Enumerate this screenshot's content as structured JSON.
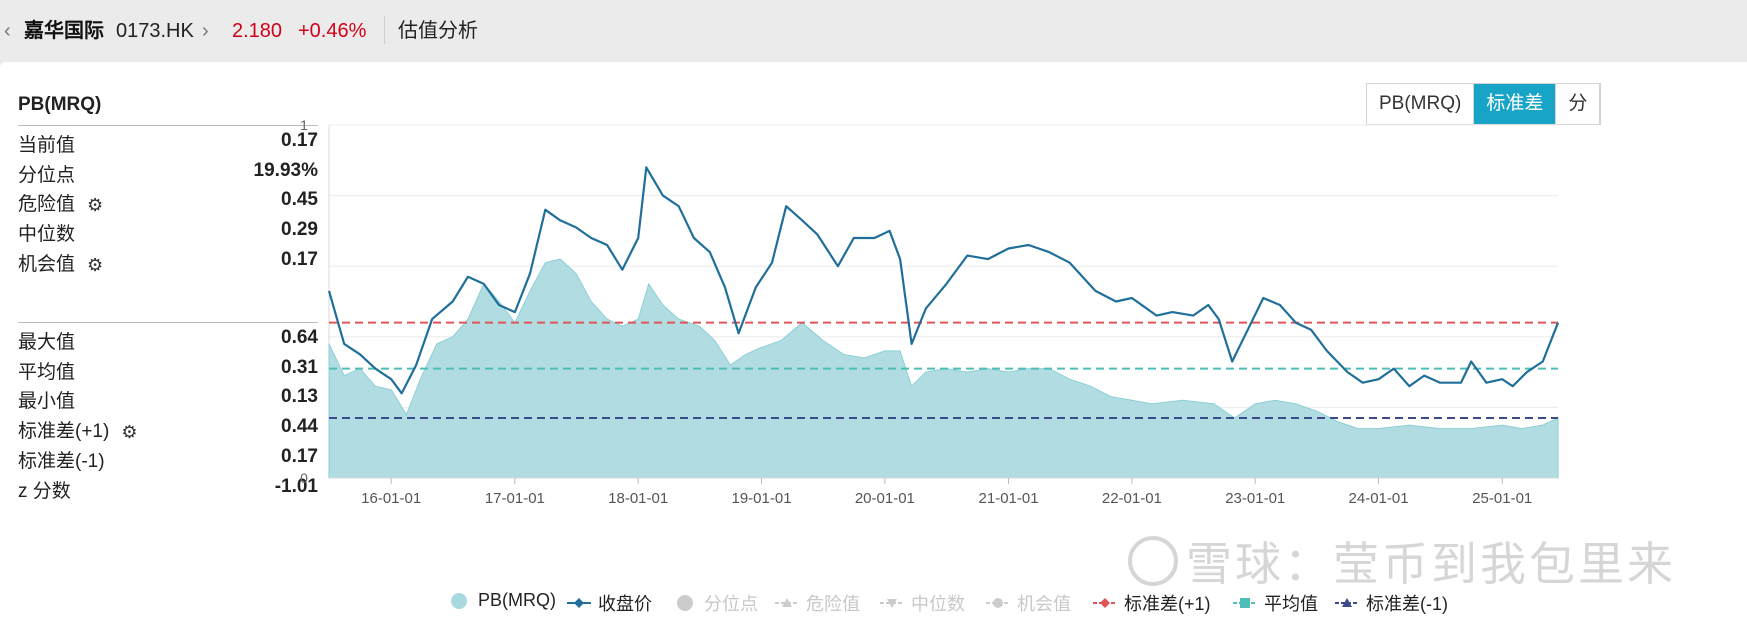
{
  "header": {
    "back_icon": "chevron-left-icon",
    "stock_name": "嘉华国际",
    "stock_code": "0173.HK",
    "forward_icon": "chevron-right-icon",
    "price": "2.180",
    "change": "+0.46%",
    "page_title": "估值分析",
    "colors": {
      "price": "#d0021b"
    }
  },
  "sidebar": {
    "title": "PB(MRQ)",
    "group1": [
      {
        "label": "当前值",
        "value": "0.17",
        "gear": false
      },
      {
        "label": "分位点",
        "value": "19.93%",
        "gear": false
      },
      {
        "label": "危险值",
        "value": "0.45",
        "gear": true
      },
      {
        "label": "中位数",
        "value": "0.29",
        "gear": false
      },
      {
        "label": "机会值",
        "value": "0.17",
        "gear": true
      }
    ],
    "group2": [
      {
        "label": "最大值",
        "value": "0.64",
        "gear": false
      },
      {
        "label": "平均值",
        "value": "0.31",
        "gear": false
      },
      {
        "label": "最小值",
        "value": "0.13",
        "gear": false
      },
      {
        "label": "标准差(+1)",
        "value": "0.44",
        "gear": true
      },
      {
        "label": "标准差(-1)",
        "value": "0.17",
        "gear": false
      },
      {
        "label": "z 分数",
        "value": "-1.01",
        "gear": false
      }
    ],
    "gear_icon": "gear-icon"
  },
  "toggle": {
    "options": [
      "PB(MRQ)",
      "标准差",
      "分"
    ],
    "selected": "标准差",
    "active_color": "#18a4c6"
  },
  "chart_data": {
    "type": "area",
    "y_axis_left": {
      "min": 0,
      "max": 1,
      "tick_labels": [
        "0",
        "1"
      ]
    },
    "x_tick_labels": [
      "16-01-01",
      "17-01-01",
      "18-01-01",
      "19-01-01",
      "20-01-01",
      "21-01-01",
      "22-01-01",
      "23-01-01",
      "24-01-01",
      "25-01-01"
    ],
    "x_range": [
      "2015-07-01",
      "2025-06-15"
    ],
    "grid": true,
    "series": [
      {
        "name": "PB(MRQ)",
        "kind": "area",
        "color": "#a8d9df",
        "points": [
          [
            "2015-07-01",
            0.38
          ],
          [
            "2015-08-15",
            0.29
          ],
          [
            "2015-10-01",
            0.31
          ],
          [
            "2015-11-15",
            0.26
          ],
          [
            "2016-01-01",
            0.25
          ],
          [
            "2016-02-15",
            0.18
          ],
          [
            "2016-04-01",
            0.29
          ],
          [
            "2016-05-15",
            0.38
          ],
          [
            "2016-07-01",
            0.4
          ],
          [
            "2016-08-15",
            0.45
          ],
          [
            "2016-10-01",
            0.55
          ],
          [
            "2016-11-15",
            0.5
          ],
          [
            "2017-01-01",
            0.44
          ],
          [
            "2017-02-15",
            0.53
          ],
          [
            "2017-04-01",
            0.61
          ],
          [
            "2017-05-15",
            0.62
          ],
          [
            "2017-07-01",
            0.58
          ],
          [
            "2017-08-15",
            0.5
          ],
          [
            "2017-10-01",
            0.45
          ],
          [
            "2017-11-15",
            0.43
          ],
          [
            "2018-01-01",
            0.45
          ],
          [
            "2018-02-01",
            0.55
          ],
          [
            "2018-03-15",
            0.49
          ],
          [
            "2018-05-01",
            0.45
          ],
          [
            "2018-07-01",
            0.43
          ],
          [
            "2018-08-15",
            0.39
          ],
          [
            "2018-10-01",
            0.32
          ],
          [
            "2018-11-15",
            0.35
          ],
          [
            "2019-01-01",
            0.37
          ],
          [
            "2019-03-01",
            0.39
          ],
          [
            "2019-05-01",
            0.44
          ],
          [
            "2019-07-01",
            0.39
          ],
          [
            "2019-09-01",
            0.35
          ],
          [
            "2019-11-01",
            0.34
          ],
          [
            "2020-01-01",
            0.36
          ],
          [
            "2020-02-15",
            0.36
          ],
          [
            "2020-03-20",
            0.26
          ],
          [
            "2020-05-01",
            0.3
          ],
          [
            "2020-07-01",
            0.31
          ],
          [
            "2020-09-01",
            0.3
          ],
          [
            "2020-11-01",
            0.31
          ],
          [
            "2021-01-01",
            0.3
          ],
          [
            "2021-03-01",
            0.31
          ],
          [
            "2021-05-01",
            0.31
          ],
          [
            "2021-07-01",
            0.28
          ],
          [
            "2021-09-01",
            0.26
          ],
          [
            "2021-11-01",
            0.23
          ],
          [
            "2022-01-01",
            0.22
          ],
          [
            "2022-03-01",
            0.21
          ],
          [
            "2022-06-01",
            0.22
          ],
          [
            "2022-09-01",
            0.21
          ],
          [
            "2022-11-01",
            0.17
          ],
          [
            "2023-01-01",
            0.21
          ],
          [
            "2023-03-01",
            0.22
          ],
          [
            "2023-05-01",
            0.21
          ],
          [
            "2023-07-01",
            0.19
          ],
          [
            "2023-09-01",
            0.16
          ],
          [
            "2023-11-01",
            0.14
          ],
          [
            "2024-01-01",
            0.14
          ],
          [
            "2024-04-01",
            0.15
          ],
          [
            "2024-07-01",
            0.14
          ],
          [
            "2024-10-01",
            0.14
          ],
          [
            "2025-01-01",
            0.15
          ],
          [
            "2025-03-01",
            0.14
          ],
          [
            "2025-05-01",
            0.15
          ],
          [
            "2025-06-15",
            0.17
          ]
        ]
      },
      {
        "name": "收盘价",
        "kind": "line",
        "color": "#1f6f9a",
        "points": [
          [
            "2015-07-01",
            0.53
          ],
          [
            "2015-08-15",
            0.38
          ],
          [
            "2015-10-01",
            0.35
          ],
          [
            "2015-11-15",
            0.31
          ],
          [
            "2016-01-01",
            0.28
          ],
          [
            "2016-02-01",
            0.24
          ],
          [
            "2016-03-15",
            0.32
          ],
          [
            "2016-05-01",
            0.45
          ],
          [
            "2016-07-01",
            0.5
          ],
          [
            "2016-08-15",
            0.57
          ],
          [
            "2016-10-01",
            0.55
          ],
          [
            "2016-11-15",
            0.49
          ],
          [
            "2017-01-01",
            0.47
          ],
          [
            "2017-02-15",
            0.58
          ],
          [
            "2017-04-01",
            0.76
          ],
          [
            "2017-05-15",
            0.73
          ],
          [
            "2017-07-01",
            0.71
          ],
          [
            "2017-08-15",
            0.68
          ],
          [
            "2017-10-01",
            0.66
          ],
          [
            "2017-11-15",
            0.59
          ],
          [
            "2018-01-01",
            0.68
          ],
          [
            "2018-01-25",
            0.88
          ],
          [
            "2018-03-15",
            0.8
          ],
          [
            "2018-05-01",
            0.77
          ],
          [
            "2018-06-15",
            0.68
          ],
          [
            "2018-08-01",
            0.64
          ],
          [
            "2018-09-15",
            0.54
          ],
          [
            "2018-10-25",
            0.41
          ],
          [
            "2018-12-15",
            0.54
          ],
          [
            "2019-02-01",
            0.61
          ],
          [
            "2019-03-15",
            0.77
          ],
          [
            "2019-05-01",
            0.73
          ],
          [
            "2019-06-15",
            0.69
          ],
          [
            "2019-08-15",
            0.6
          ],
          [
            "2019-10-01",
            0.68
          ],
          [
            "2019-12-01",
            0.68
          ],
          [
            "2020-01-15",
            0.7
          ],
          [
            "2020-02-15",
            0.62
          ],
          [
            "2020-03-20",
            0.38
          ],
          [
            "2020-05-01",
            0.48
          ],
          [
            "2020-07-01",
            0.55
          ],
          [
            "2020-09-01",
            0.63
          ],
          [
            "2020-11-01",
            0.62
          ],
          [
            "2021-01-01",
            0.65
          ],
          [
            "2021-03-01",
            0.66
          ],
          [
            "2021-05-01",
            0.64
          ],
          [
            "2021-07-01",
            0.61
          ],
          [
            "2021-09-15",
            0.53
          ],
          [
            "2021-11-15",
            0.5
          ],
          [
            "2022-01-01",
            0.51
          ],
          [
            "2022-03-15",
            0.46
          ],
          [
            "2022-05-01",
            0.47
          ],
          [
            "2022-07-01",
            0.46
          ],
          [
            "2022-08-15",
            0.49
          ],
          [
            "2022-09-15",
            0.45
          ],
          [
            "2022-10-25",
            0.33
          ],
          [
            "2022-12-15",
            0.43
          ],
          [
            "2023-01-25",
            0.51
          ],
          [
            "2023-03-15",
            0.49
          ],
          [
            "2023-05-01",
            0.44
          ],
          [
            "2023-06-15",
            0.42
          ],
          [
            "2023-08-01",
            0.36
          ],
          [
            "2023-10-01",
            0.3
          ],
          [
            "2023-11-15",
            0.27
          ],
          [
            "2024-01-01",
            0.28
          ],
          [
            "2024-02-15",
            0.31
          ],
          [
            "2024-04-01",
            0.26
          ],
          [
            "2024-05-15",
            0.29
          ],
          [
            "2024-07-01",
            0.27
          ],
          [
            "2024-09-01",
            0.27
          ],
          [
            "2024-10-01",
            0.33
          ],
          [
            "2024-11-15",
            0.27
          ],
          [
            "2025-01-01",
            0.28
          ],
          [
            "2025-02-01",
            0.26
          ],
          [
            "2025-03-15",
            0.3
          ],
          [
            "2025-05-01",
            0.33
          ],
          [
            "2025-06-15",
            0.44
          ]
        ]
      }
    ],
    "reference_lines": [
      {
        "name": "标准差(+1)",
        "value": 0.44,
        "color": "#e0555a"
      },
      {
        "name": "平均值",
        "value": 0.31,
        "color": "#4fbdb8"
      },
      {
        "name": "标准差(-1)",
        "value": 0.17,
        "color": "#3a4a8a"
      }
    ],
    "legend": {
      "position": "bottom",
      "items": [
        {
          "name": "PB(MRQ)",
          "symbol": "circle",
          "color": "#a8d9df",
          "active": true
        },
        {
          "name": "收盘价",
          "symbol": "line-diamond",
          "color": "#1f6f9a",
          "active": true
        },
        {
          "name": "分位点",
          "symbol": "circle",
          "color": "#cccccc",
          "active": false
        },
        {
          "name": "危险值",
          "symbol": "dash-triangle",
          "color": "#cccccc",
          "active": false
        },
        {
          "name": "中位数",
          "symbol": "dash-triangle-down",
          "color": "#cccccc",
          "active": false
        },
        {
          "name": "机会值",
          "symbol": "dash-circle",
          "color": "#cccccc",
          "active": false
        },
        {
          "name": "标准差(+1)",
          "symbol": "dash-diamond",
          "color": "#e0555a",
          "active": true
        },
        {
          "name": "平均值",
          "symbol": "dash-square",
          "color": "#4fbdb8",
          "active": true
        },
        {
          "name": "标准差(-1)",
          "symbol": "dash-triangle",
          "color": "#3a4a8a",
          "active": true
        }
      ]
    }
  },
  "watermark": {
    "icon": "xueqiu-logo-icon",
    "text": "雪球：莹币到我包里来"
  }
}
